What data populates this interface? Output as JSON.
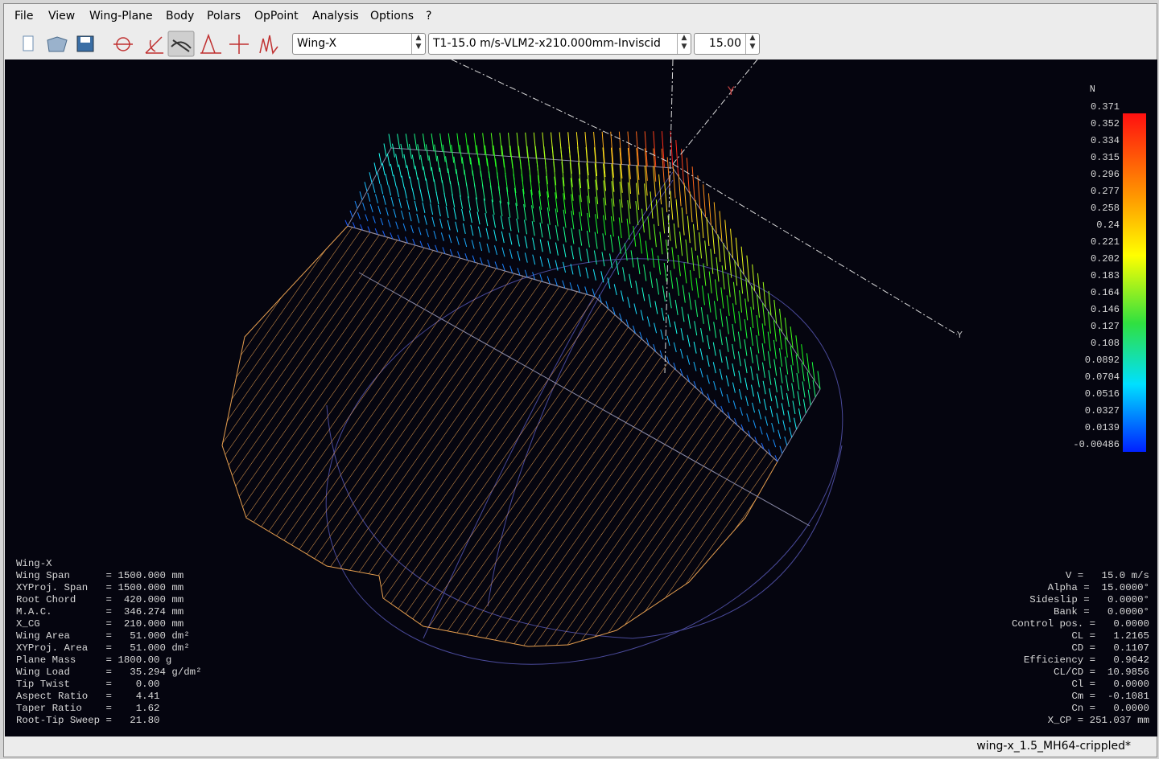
{
  "menu": [
    "File",
    "View",
    "Wing-Plane",
    "Body",
    "Polars",
    "OpPoint",
    "Analysis",
    "Options",
    "?"
  ],
  "toolbar": {
    "wing": "Wing-X",
    "polar": "T1-15.0 m/s-VLM2-x210.000mm-Inviscid",
    "opp": "15.00"
  },
  "axis_labels": [
    "Y",
    "Y"
  ],
  "legend": {
    "unit": "N",
    "labels": [
      "0.371",
      "0.352",
      "0.334",
      "0.315",
      "0.296",
      "0.277",
      "0.258",
      "0.24",
      "0.221",
      "0.202",
      "0.183",
      "0.164",
      "0.146",
      "0.127",
      "0.108",
      "0.0892",
      "0.0704",
      "0.0516",
      "0.0327",
      "0.0139",
      "-0.00486"
    ]
  },
  "wing_info": [
    "Wing-X",
    "Wing Span      = 1500.000 mm",
    "XYProj. Span   = 1500.000 mm",
    "Root Chord     =  420.000 mm",
    "M.A.C.         =  346.274 mm",
    "X_CG           =  210.000 mm",
    "Wing Area      =   51.000 dm²",
    "XYProj. Area   =   51.000 dm²",
    "Plane Mass     = 1800.00 g",
    "Wing Load      =   35.294 g/dm²",
    "Tip Twist      =    0.00",
    "Aspect Ratio   =    4.41",
    "Taper Ratio    =    1.62",
    "Root-Tip Sweep =   21.80"
  ],
  "opp_info": [
    "V =   15.0 m/s",
    "Alpha =  15.0000°",
    "Sideslip =   0.0000°",
    "Bank =   0.0000°",
    "Control pos. =   0.0000",
    "CL =   1.2165",
    "CD =   0.1107",
    "Efficiency =   0.9642",
    "CL/CD =  10.9856",
    "Cl =   0.0000",
    "Cm =  -0.1081",
    "Cn =   0.0000",
    "X_CP = 251.037 mm"
  ],
  "status": "wing-x_1.5_MH64-crippled*"
}
